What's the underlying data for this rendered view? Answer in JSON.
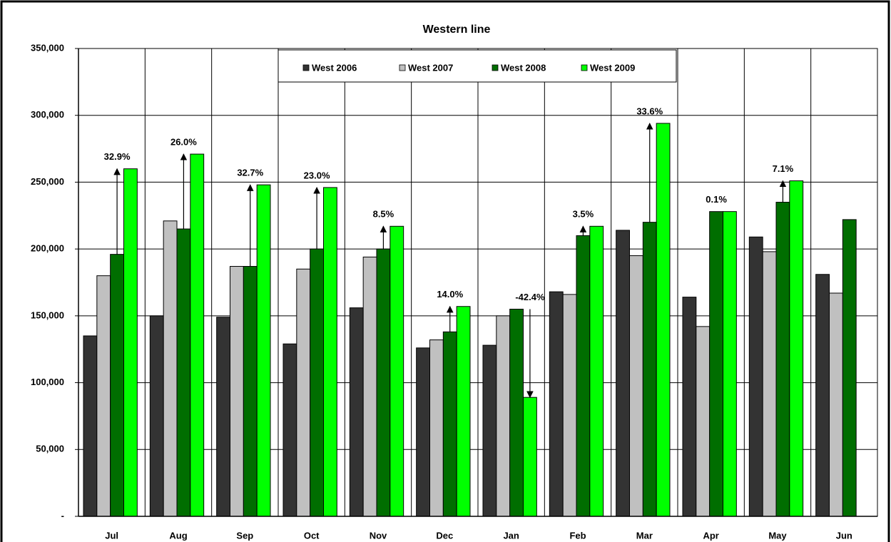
{
  "chart_data": {
    "type": "bar",
    "title": "Western line",
    "categories": [
      "Jul",
      "Aug",
      "Sep",
      "Oct",
      "Nov",
      "Dec",
      "Jan",
      "Feb",
      "Mar",
      "Apr",
      "May",
      "Jun"
    ],
    "series": [
      {
        "name": "West 2006",
        "color": "#333333",
        "values": [
          135000,
          150000,
          149000,
          129000,
          156000,
          126000,
          128000,
          168000,
          214000,
          164000,
          209000,
          181000
        ]
      },
      {
        "name": "West 2007",
        "color": "#c0c0c0",
        "values": [
          180000,
          221000,
          187000,
          185000,
          194000,
          132000,
          150000,
          166000,
          195000,
          142000,
          198000,
          167000
        ]
      },
      {
        "name": "West 2008",
        "color": "#006e00",
        "values": [
          196000,
          215000,
          187000,
          200000,
          200000,
          138000,
          155000,
          210000,
          220000,
          228000,
          235000,
          222000
        ]
      },
      {
        "name": "West 2009",
        "color": "#00ff00",
        "values": [
          260000,
          271000,
          248000,
          246000,
          217000,
          157000,
          89000,
          217000,
          294000,
          228000,
          251000,
          null
        ]
      }
    ],
    "change_labels": [
      "32.9%",
      "26.0%",
      "32.7%",
      "23.0%",
      "8.5%",
      "14.0%",
      "-42.4%",
      "3.5%",
      "33.6%",
      "0.1%",
      "7.1%",
      null
    ],
    "ylim": [
      0,
      350000
    ],
    "yticks": [
      {
        "value": 0,
        "label": "-"
      },
      {
        "value": 50000,
        "label": "50,000"
      },
      {
        "value": 100000,
        "label": "100,000"
      },
      {
        "value": 150000,
        "label": "150,000"
      },
      {
        "value": 200000,
        "label": "200,000"
      },
      {
        "value": 250000,
        "label": "250,000"
      },
      {
        "value": 300000,
        "label": "300,000"
      },
      {
        "value": 350000,
        "label": "350,000"
      }
    ],
    "grid": true,
    "legend": "top"
  }
}
